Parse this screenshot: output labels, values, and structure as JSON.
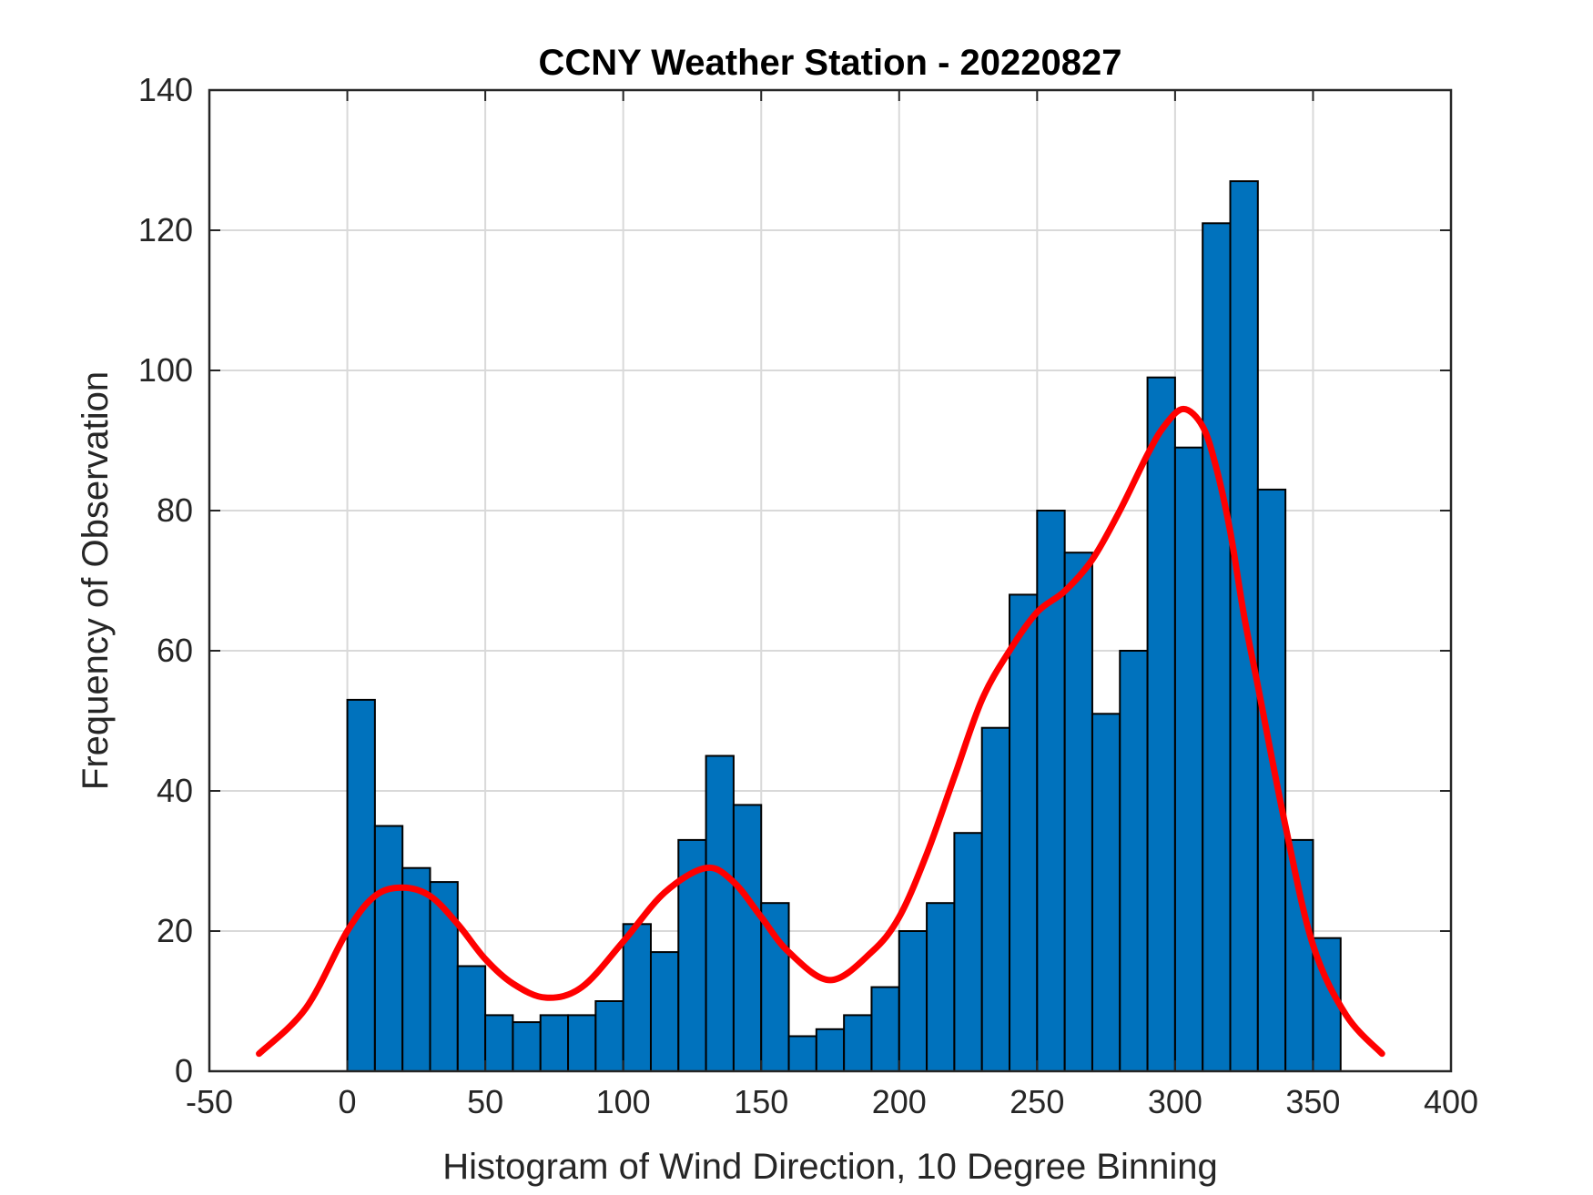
{
  "chart_data": {
    "type": "bar",
    "title": "CCNY Weather Station - 20220827",
    "xlabel": "Histogram of Wind Direction, 10 Degree Binning",
    "ylabel": "Frequency of Observation",
    "xlim": [
      -50,
      400
    ],
    "ylim": [
      0,
      140
    ],
    "xticks": [
      "-50",
      "0",
      "50",
      "100",
      "150",
      "200",
      "250",
      "300",
      "350",
      "400"
    ],
    "yticks": [
      "0",
      "20",
      "40",
      "60",
      "80",
      "100",
      "120",
      "140"
    ],
    "grid": true,
    "bin_width": 10,
    "bin_edges_start": 0,
    "values": [
      53,
      35,
      29,
      27,
      15,
      8,
      7,
      8,
      8,
      10,
      21,
      17,
      33,
      45,
      38,
      24,
      5,
      6,
      8,
      12,
      20,
      24,
      34,
      49,
      68,
      80,
      74,
      51,
      60,
      99,
      89,
      121,
      127,
      83,
      33,
      19
    ],
    "bar_color": "#0072BD",
    "fit_curve": {
      "color": "#FF0000",
      "x": [
        -32,
        -15,
        0,
        10,
        20,
        30,
        40,
        50,
        60,
        72,
        85,
        100,
        115,
        130,
        140,
        150,
        160,
        175,
        190,
        200,
        210,
        220,
        230,
        240,
        250,
        260,
        270,
        280,
        290,
        296,
        303,
        310,
        315,
        320,
        325,
        330,
        340,
        350,
        362,
        375
      ],
      "y": [
        2.5,
        9,
        20,
        25,
        26.2,
        25,
        21,
        16,
        12.5,
        10.5,
        12,
        18.5,
        25.5,
        29,
        27,
        22,
        17,
        13,
        17,
        22,
        31,
        42,
        53,
        60,
        65.5,
        68.5,
        73,
        80,
        88,
        92,
        94.5,
        92,
        86,
        77,
        65,
        55,
        35,
        18,
        8,
        2.5
      ]
    }
  }
}
